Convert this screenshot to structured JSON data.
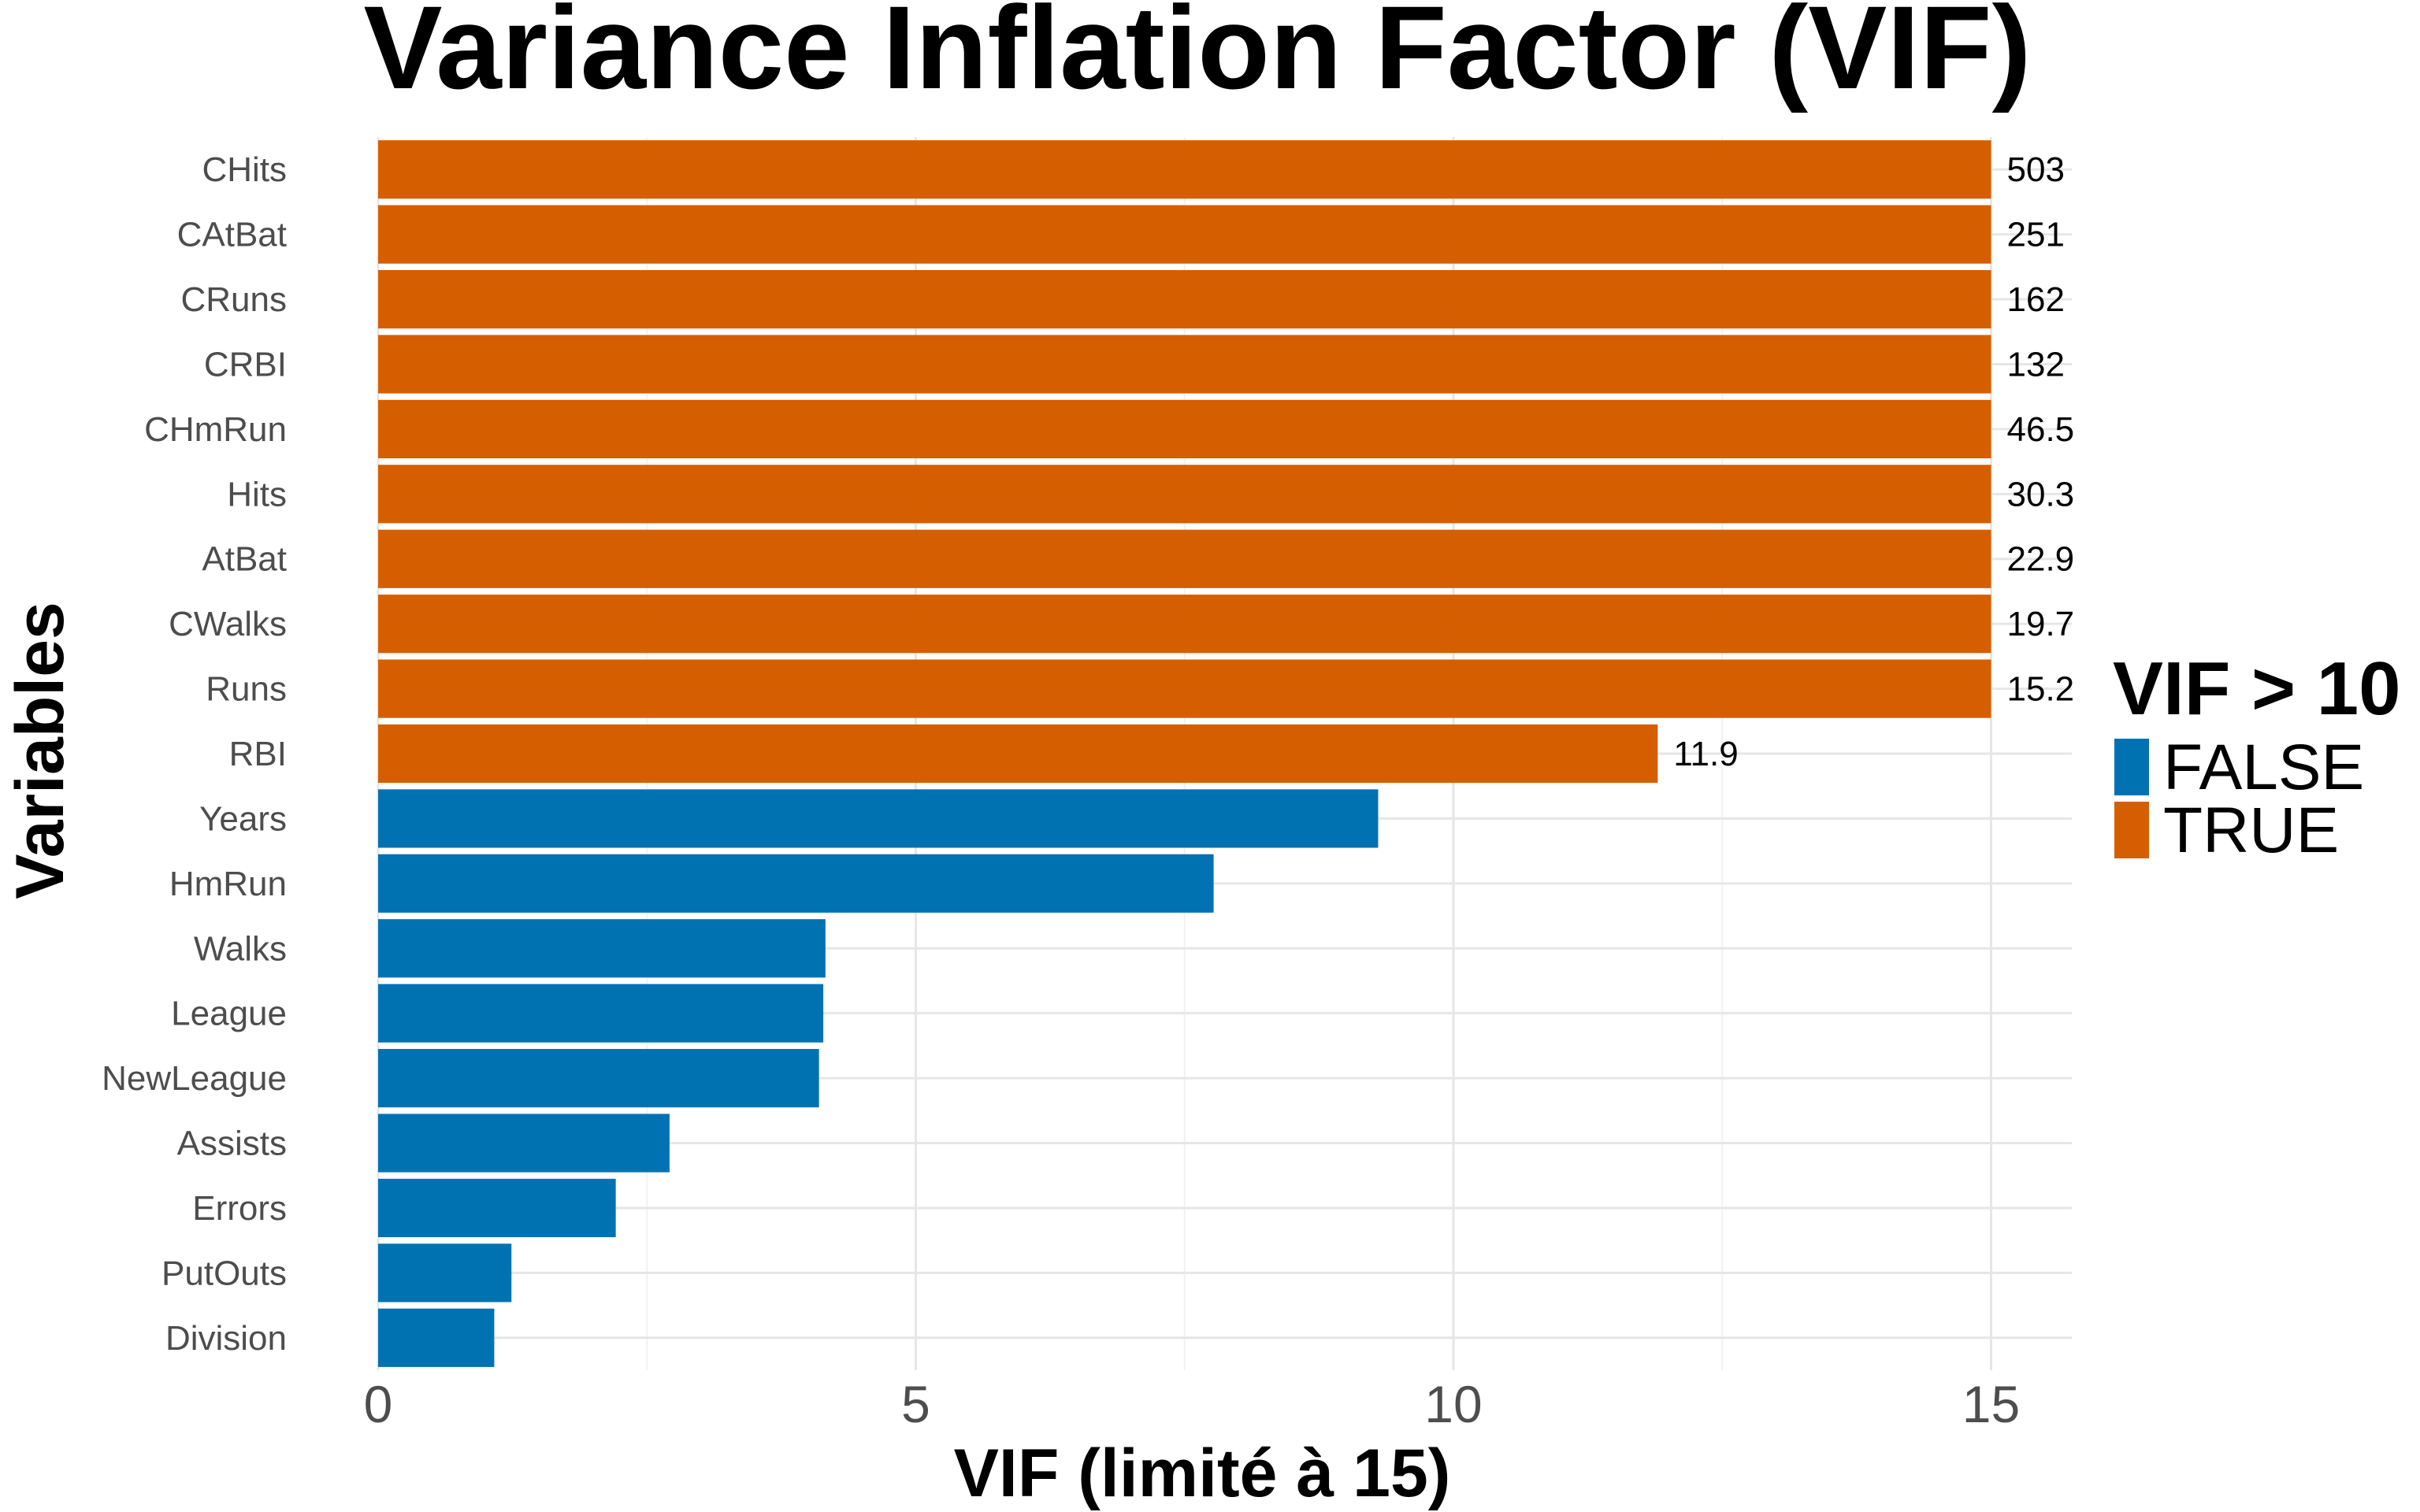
{
  "chart_data": {
    "type": "bar",
    "orientation": "horizontal",
    "title": "Variance Inflation Factor (VIF)",
    "xlabel": "VIF (limité à 15)",
    "ylabel": "Variables",
    "xlim": [
      0,
      15.75
    ],
    "x_ticks": [
      "0",
      "5",
      "10",
      "15"
    ],
    "x_tick_values": [
      0,
      5,
      10,
      15
    ],
    "cap": 15,
    "grid": true,
    "legend": {
      "title": "VIF > 10",
      "position": "right",
      "entries": [
        {
          "label": "FALSE",
          "color": "#0072B2"
        },
        {
          "label": "TRUE",
          "color": "#D55E00"
        }
      ]
    },
    "categories": [
      "CHits",
      "CAtBat",
      "CRuns",
      "CRBI",
      "CHmRun",
      "Hits",
      "AtBat",
      "CWalks",
      "Runs",
      "RBI",
      "Years",
      "HmRun",
      "Walks",
      "League",
      "NewLeague",
      "Assists",
      "Errors",
      "PutOuts",
      "Division"
    ],
    "values": [
      15,
      15,
      15,
      15,
      15,
      15,
      15,
      15,
      15,
      11.9,
      9.3,
      7.77,
      4.16,
      4.14,
      4.1,
      2.71,
      2.21,
      1.24,
      1.08
    ],
    "labels": [
      "503",
      "251",
      "162",
      "132",
      "46.5",
      "30.3",
      "22.9",
      "19.7",
      "15.2",
      "11.9",
      "",
      "",
      "",
      "",
      "",
      "",
      "",
      "",
      ""
    ],
    "high_vif": [
      true,
      true,
      true,
      true,
      true,
      true,
      true,
      true,
      true,
      true,
      false,
      false,
      false,
      false,
      false,
      false,
      false,
      false,
      false
    ]
  }
}
